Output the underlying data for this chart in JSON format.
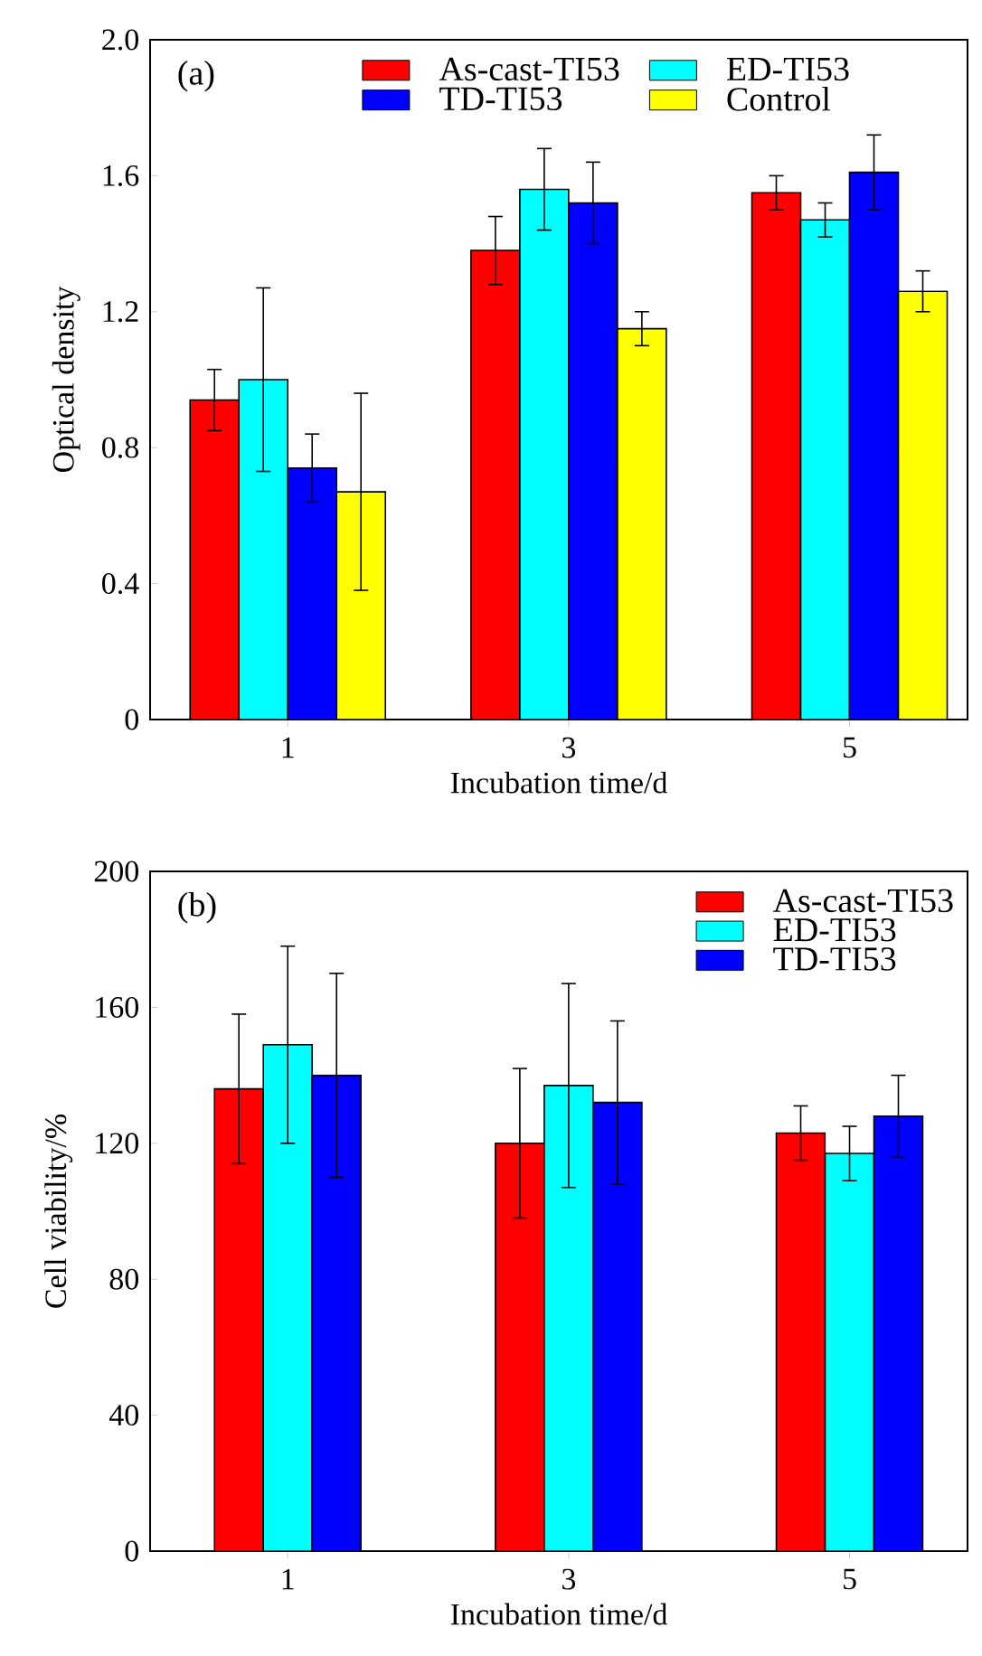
{
  "chart_data": [
    {
      "type": "bar",
      "xlabel": "Incubation time/d",
      "ylabel": "Optical density",
      "categories": [
        "1",
        "3",
        "5"
      ],
      "series": [
        {
          "name": "As-cast-TI53",
          "color": "#ff0000",
          "values": [
            0.94,
            1.38,
            1.55
          ],
          "errors": [
            0.09,
            0.1,
            0.05
          ]
        },
        {
          "name": "ED-TI53",
          "color": "#00ffff",
          "values": [
            1.0,
            1.56,
            1.47
          ],
          "errors": [
            0.27,
            0.12,
            0.05
          ]
        },
        {
          "name": "TD-TI53",
          "color": "#0000ff",
          "values": [
            0.74,
            1.52,
            1.61
          ],
          "errors": [
            0.1,
            0.12,
            0.11
          ]
        },
        {
          "name": "Control",
          "color": "#ffff00",
          "values": [
            0.67,
            1.15,
            1.26
          ],
          "errors": [
            0.29,
            0.05,
            0.06
          ]
        }
      ],
      "ylim": [
        0,
        2.0
      ],
      "yticks": [
        0,
        0.4,
        0.8,
        1.2,
        1.6,
        {
          "value": 2.0,
          "label": "2.0"
        }
      ],
      "legend": "top",
      "annotations": [
        "(a)"
      ]
    },
    {
      "type": "bar",
      "xlabel": "Incubation time/d",
      "ylabel": "Cell viability/%",
      "categories": [
        "1",
        "3",
        "5"
      ],
      "series": [
        {
          "name": "As-cast-TI53",
          "color": "#ff0000",
          "values": [
            136,
            120,
            123
          ],
          "errors": [
            22,
            22,
            8
          ]
        },
        {
          "name": "ED-TI53",
          "color": "#00ffff",
          "values": [
            149,
            137,
            117
          ],
          "errors": [
            29,
            30,
            8
          ]
        },
        {
          "name": "TD-TI53",
          "color": "#0000ff",
          "values": [
            140,
            132,
            128
          ],
          "errors": [
            30,
            24,
            12
          ]
        }
      ],
      "ylim": [
        0,
        200
      ],
      "yticks": [
        0,
        40,
        80,
        120,
        160,
        200
      ],
      "legend": "top right",
      "annotations": [
        "(b)"
      ]
    }
  ]
}
